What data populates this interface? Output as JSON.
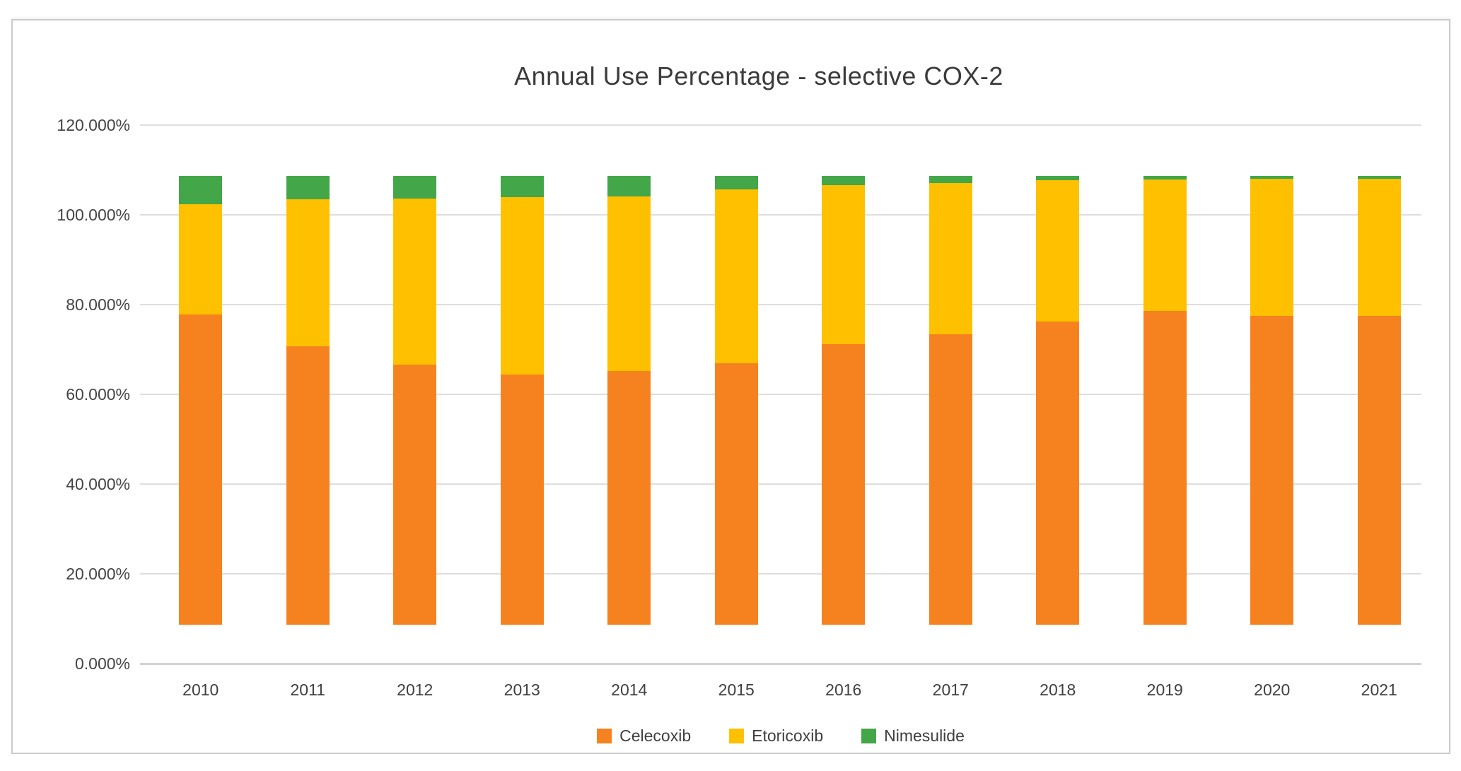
{
  "title": "Annual Use Percentage - selective COX-2",
  "chart_data": {
    "type": "bar",
    "subtype": "stacked-100",
    "title": "Annual Use Percentage - selective COX-2",
    "xlabel": "",
    "ylabel": "",
    "categories": [
      "2010",
      "2011",
      "2012",
      "2013",
      "2014",
      "2015",
      "2016",
      "2017",
      "2018",
      "2019",
      "2020",
      "2021"
    ],
    "series": [
      {
        "name": "Celecoxib",
        "color": "#F6821F",
        "values": [
          69.1,
          62.1,
          58.0,
          55.8,
          56.6,
          58.2,
          62.5,
          64.8,
          67.5,
          69.9,
          68.8,
          68.9
        ]
      },
      {
        "name": "Etoricoxib",
        "color": "#FFC000",
        "values": [
          24.6,
          32.7,
          37.0,
          39.5,
          38.8,
          38.8,
          35.5,
          33.6,
          31.5,
          29.3,
          30.5,
          30.5
        ]
      },
      {
        "name": "Nimesulide",
        "color": "#43A648",
        "values": [
          6.3,
          5.2,
          5.0,
          4.7,
          4.6,
          3.0,
          2.0,
          1.6,
          1.0,
          0.8,
          0.7,
          0.6
        ]
      }
    ],
    "ylim": [
      0,
      120
    ],
    "ytick_step": 20,
    "ytick_labels": [
      "0.000%",
      "20.000%",
      "40.000%",
      "60.000%",
      "80.000%",
      "100.000%",
      "120.000%"
    ],
    "grid": true,
    "legend_position": "bottom",
    "values_unit": "percent"
  }
}
